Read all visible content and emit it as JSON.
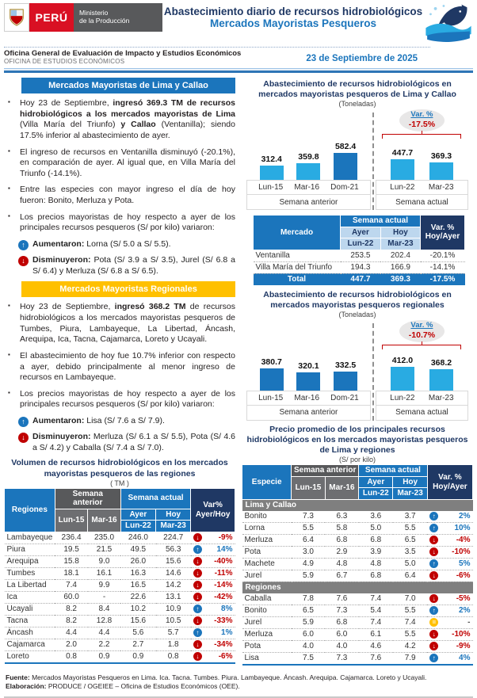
{
  "colors": {
    "blue": "#1B75BC",
    "light_blue": "#29ABE2",
    "navy": "#1F3864",
    "gold": "#FFC000",
    "red": "#C00000",
    "dark_gray": "#58595B",
    "mid_gray": "#6D6E71",
    "band_gray": "#7F7F7F",
    "pale_blue": "#BDD7EE"
  },
  "header": {
    "logo_peru": "PERÚ",
    "logo_ministry_1": "Ministerio",
    "logo_ministry_2": "de la Producción",
    "title_line1": "Abastecimiento diario de recursos hidrobiológicos",
    "title_line2": "Mercados Mayoristas Pesqueros",
    "office_line1": "Oficina General de Evaluación de Impacto y Estudios Económicos",
    "office_line2": "OFICINA DE ESTUDIOS ECONÓMICOS",
    "date": "23 de Septiembre de 2025"
  },
  "left": {
    "lima_section": {
      "title": "Mercados Mayoristas de Lima y Callao",
      "bullet1": [
        {
          "t": "Hoy 23 de Septiembre, "
        },
        {
          "t": "ingresó 369.3 TM de recursos hidrobiológicos a los mercados mayoristas de Lima",
          "b": true
        },
        {
          "t": " (Villa María del Triunfo) "
        },
        {
          "t": "y Callao",
          "b": true
        },
        {
          "t": " (Ventanilla); siendo 17.5% inferior al abastecimiento de ayer."
        }
      ],
      "bullet2": [
        {
          "t": "El ingreso de recursos en Ventanilla disminuyó (-20.1%), en comparación de ayer. Al igual que, en Villa María del Triunfo (-14.1%)."
        }
      ],
      "bullet3": [
        {
          "t": "Entre las especies con mayor ingreso el día de hoy fueron: Bonito, Merluza y Pota."
        }
      ],
      "bullet4": [
        {
          "t": "Los precios mayoristas de hoy respecto a ayer de los principales recursos pesqueros (S/ por kilo) variaron:"
        }
      ],
      "increase": [
        {
          "t": "Aumentaron:",
          "b": true
        },
        {
          "t": " Lorna (S/ 5.0 a S/ 5.5)."
        }
      ],
      "decrease": [
        {
          "t": "Disminuyeron:",
          "b": true
        },
        {
          "t": " Pota (S/ 3.9 a S/ 3.5), Jurel (S/ 6.8 a S/ 6.4) y Merluza (S/ 6.8 a S/ 6.5)."
        }
      ]
    },
    "regional_section": {
      "title": "Mercados Mayoristas Regionales",
      "bullet1": [
        {
          "t": "Hoy 23 de Septiembre, "
        },
        {
          "t": "ingresó 368.2 TM",
          "b": true
        },
        {
          "t": " de recursos hidrobiológicos a los mercados mayoristas pesqueros de Tumbes, Piura, Lambayeque, La Libertad, Áncash, Arequipa, Ica, Tacna, Cajamarca, Loreto y Ucayali."
        }
      ],
      "bullet2": [
        {
          "t": "El abastecimiento de hoy fue 10.7% inferior con respecto a ayer, debido principalmente al menor ingreso de recursos en Lambayeque."
        }
      ],
      "bullet3": [
        {
          "t": "Los precios mayoristas de hoy respecto a ayer de los principales recursos pesqueros (S/ por kilo) variaron:"
        }
      ],
      "increase": [
        {
          "t": "Aumentaron:",
          "b": true
        },
        {
          "t": " Lisa (S/ 7.6 a S/ 7.9)."
        }
      ],
      "decrease": [
        {
          "t": "Disminuyeron:",
          "b": true
        },
        {
          "t": " Merluza (S/ 6.1 a S/ 5.5), Pota (S/ 4.6 a S/ 4.2) y Caballa (S/ 7.4 a S/ 7.0)."
        }
      ]
    },
    "volume_table": {
      "title": "Volumen de recursos hidrobiológicos en los mercados mayoristas pesqueros de las regiones",
      "unit": "( TM )",
      "col_region": "Regiones",
      "col_prev": "Semana anterior",
      "col_curr": "Semana actual",
      "col_lun15": "Lun-15",
      "col_mar16": "Mar-16",
      "col_ayer": "Ayer",
      "col_hoy": "Hoy",
      "col_lun22": "Lun-22",
      "col_mar23": "Mar-23",
      "col_var_1": "Var%",
      "col_var_2": "Ayer/Hoy",
      "rows": [
        {
          "region": "Lambayeque",
          "lun15": "236.4",
          "mar16": "235.0",
          "lun22": "246.0",
          "mar23": "224.7",
          "dir": "down",
          "var": "-9%"
        },
        {
          "region": "Piura",
          "lun15": "19.5",
          "mar16": "21.5",
          "lun22": "49.5",
          "mar23": "56.3",
          "dir": "up",
          "var": "14%"
        },
        {
          "region": "Arequipa",
          "lun15": "15.8",
          "mar16": "9.0",
          "lun22": "26.0",
          "mar23": "15.6",
          "dir": "down",
          "var": "-40%"
        },
        {
          "region": "Tumbes",
          "lun15": "18.1",
          "mar16": "16.1",
          "lun22": "16.3",
          "mar23": "14.6",
          "dir": "down",
          "var": "-11%"
        },
        {
          "region": "La Libertad",
          "lun15": "7.4",
          "mar16": "9.9",
          "lun22": "16.5",
          "mar23": "14.2",
          "dir": "down",
          "var": "-14%"
        },
        {
          "region": "Ica",
          "lun15": "60.0",
          "mar16": "-",
          "lun22": "22.6",
          "mar23": "13.1",
          "dir": "down",
          "var": "-42%"
        },
        {
          "region": "Ucayali",
          "lun15": "8.2",
          "mar16": "8.4",
          "lun22": "10.2",
          "mar23": "10.9",
          "dir": "up",
          "var": "8%"
        },
        {
          "region": "Tacna",
          "lun15": "8.2",
          "mar16": "12.8",
          "lun22": "15.6",
          "mar23": "10.5",
          "dir": "down",
          "var": "-33%"
        },
        {
          "region": "Áncash",
          "lun15": "4.4",
          "mar16": "4.4",
          "lun22": "5.6",
          "mar23": "5.7",
          "dir": "up",
          "var": "1%"
        },
        {
          "region": "Cajamarca",
          "lun15": "2.0",
          "mar16": "2.2",
          "lun22": "2.7",
          "mar23": "1.8",
          "dir": "down",
          "var": "-34%"
        },
        {
          "region": "Loreto",
          "lun15": "0.8",
          "mar16": "0.9",
          "lun22": "0.9",
          "mar23": "0.8",
          "dir": "down",
          "var": "-6%"
        }
      ]
    }
  },
  "right": {
    "market_table": {
      "col_market": "Mercado",
      "col_curr": "Semana actual",
      "col_ayer": "Ayer",
      "col_hoy": "Hoy",
      "col_lun22": "Lun-22",
      "col_mar23": "Mar-23",
      "col_var_1": "Var. %",
      "col_var_2": "Hoy/Ayer",
      "rows": [
        {
          "market": "Ventanilla",
          "ayer": "253.5",
          "hoy": "202.4",
          "var": "-20.1%"
        },
        {
          "market": "Villa María del Triunfo",
          "ayer": "194.3",
          "hoy": "166.9",
          "var": "-14.1%"
        }
      ],
      "total": {
        "label": "Total",
        "ayer": "447.7",
        "hoy": "369.3",
        "var": "-17.5%"
      }
    },
    "price_table": {
      "title": "Precio promedio de los principales recursos hidrobiológicos en los mercados mayoristas pesqueros de Lima y regiones",
      "unit": "(S/ por kilo)",
      "col_species": "Especie",
      "col_prev": "Semana anterior",
      "col_curr": "Semana actual",
      "col_lun15": "Lun-15",
      "col_mar16": "Mar-16",
      "col_ayer": "Ayer",
      "col_hoy": "Hoy",
      "col_lun22": "Lun-22",
      "col_mar23": "Mar-23",
      "col_var_1": "Var. %",
      "col_var_2": "Hoy/Ayer",
      "section_lima": "Lima y Callao",
      "section_regiones": "Regiones",
      "lima_rows": [
        {
          "species": "Bonito",
          "lun15": "7.3",
          "mar16": "6.3",
          "lun22": "3.6",
          "mar23": "3.7",
          "dir": "up",
          "var": "2%"
        },
        {
          "species": "Lorna",
          "lun15": "5.5",
          "mar16": "5.8",
          "lun22": "5.0",
          "mar23": "5.5",
          "dir": "up",
          "var": "10%"
        },
        {
          "species": "Merluza",
          "lun15": "6.4",
          "mar16": "6.8",
          "lun22": "6.8",
          "mar23": "6.5",
          "dir": "down",
          "var": "-4%"
        },
        {
          "species": "Pota",
          "lun15": "3.0",
          "mar16": "2.9",
          "lun22": "3.9",
          "mar23": "3.5",
          "dir": "down",
          "var": "-10%"
        },
        {
          "species": "Machete",
          "lun15": "4.9",
          "mar16": "4.8",
          "lun22": "4.8",
          "mar23": "5.0",
          "dir": "up",
          "var": "5%"
        },
        {
          "species": "Jurel",
          "lun15": "5.9",
          "mar16": "6.7",
          "lun22": "6.8",
          "mar23": "6.4",
          "dir": "down",
          "var": "-6%"
        }
      ],
      "regiones_rows": [
        {
          "species": "Caballa",
          "lun15": "7.8",
          "mar16": "7.6",
          "lun22": "7.4",
          "mar23": "7.0",
          "dir": "down",
          "var": "-5%"
        },
        {
          "species": "Bonito",
          "lun15": "6.5",
          "mar16": "7.3",
          "lun22": "5.4",
          "mar23": "5.5",
          "dir": "up",
          "var": "2%"
        },
        {
          "species": "Jurel",
          "lun15": "5.9",
          "mar16": "6.8",
          "lun22": "7.4",
          "mar23": "7.4",
          "dir": "eq",
          "var": "-"
        },
        {
          "species": "Merluza",
          "lun15": "6.0",
          "mar16": "6.0",
          "lun22": "6.1",
          "mar23": "5.5",
          "dir": "down",
          "var": "-10%"
        },
        {
          "species": "Pota",
          "lun15": "4.0",
          "mar16": "4.0",
          "lun22": "4.6",
          "mar23": "4.2",
          "dir": "down",
          "var": "-9%"
        },
        {
          "species": "Lisa",
          "lun15": "7.5",
          "mar16": "7.3",
          "lun22": "7.6",
          "mar23": "7.9",
          "dir": "up",
          "var": "4%"
        }
      ]
    }
  },
  "chart_data": [
    {
      "type": "bar",
      "title": "Abastecimiento de recursos hidrobiológicos en mercados mayoristas pesqueros de Lima y Callao",
      "subtitle": "(Toneladas)",
      "categories": [
        "Lun-15",
        "Mar-16",
        "Dom-21",
        "Lun-22",
        "Mar-23"
      ],
      "values": [
        312.4,
        359.8,
        582.4,
        447.7,
        369.3
      ],
      "value_labels": [
        "312.4",
        "359.8",
        "582.4",
        "447.7",
        "369.3"
      ],
      "group_labels": [
        "Semana anterior",
        "Semana actual"
      ],
      "var_label": "Var. %",
      "var_value": "-17.5%",
      "bar_colors": [
        "light",
        "light",
        "dark",
        "light",
        "light"
      ]
    },
    {
      "type": "bar",
      "title": "Abastecimiento de recursos hidrobiológicos en mercados mayoristas pesqueros regionales",
      "subtitle": "(Toneladas)",
      "categories": [
        "Lun-15",
        "Mar-16",
        "Dom-21",
        "Lun-22",
        "Mar-23"
      ],
      "values": [
        380.7,
        320.1,
        332.5,
        412.0,
        368.2
      ],
      "value_labels": [
        "380.7",
        "320.1",
        "332.5",
        "412.0",
        "368.2"
      ],
      "group_labels": [
        "Semana anterior",
        "Semana actual"
      ],
      "var_label": "Var. %",
      "var_value": "-10.7%",
      "bar_colors": [
        "dark",
        "dark",
        "dark",
        "light",
        "light"
      ]
    }
  ],
  "footer": {
    "fuente": [
      {
        "t": "Fuente:",
        "b": true
      },
      {
        "t": " Mercados Mayoristas Pesqueros en Lima. Ica. Tacna. Tumbes. Piura. Lambayeque. Áncash. Arequipa. Cajamarca. Loreto y Ucayali."
      }
    ],
    "elaboracion": [
      {
        "t": "Elaboración:",
        "b": true
      },
      {
        "t": " PRODUCE / OGEIEE – Oficina de Estudios Económicos (OEE)."
      }
    ]
  }
}
